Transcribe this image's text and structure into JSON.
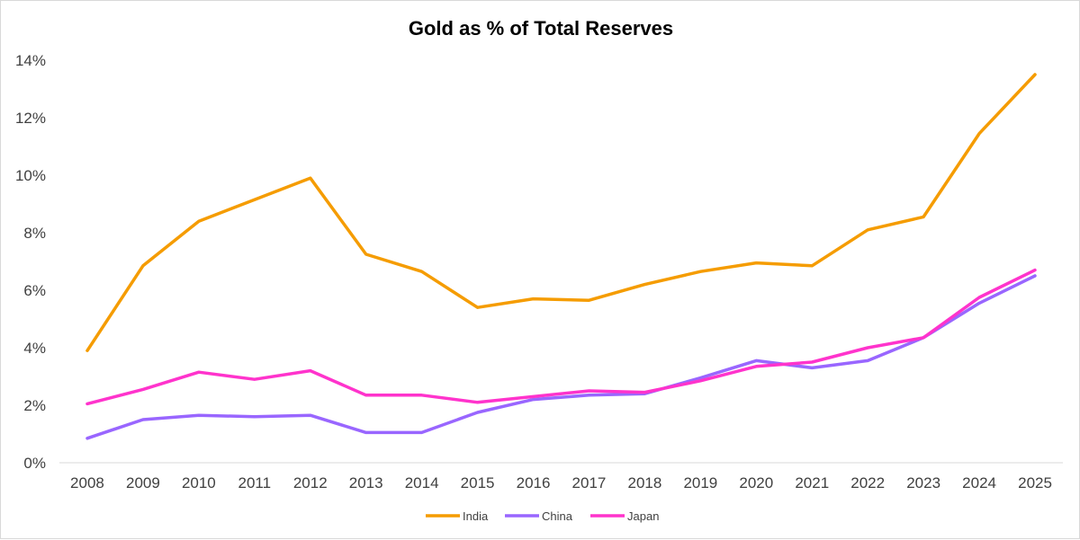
{
  "chart_data": {
    "type": "line",
    "title": "Gold as % of Total Reserves",
    "xlabel": "",
    "ylabel": "",
    "categories": [
      "2008",
      "2009",
      "2010",
      "2011",
      "2012",
      "2013",
      "2014",
      "2015",
      "2016",
      "2017",
      "2018",
      "2019",
      "2020",
      "2021",
      "2022",
      "2023",
      "2024",
      "2025"
    ],
    "ylim": [
      0,
      14
    ],
    "yticks": [
      0,
      2,
      4,
      6,
      8,
      10,
      12,
      14
    ],
    "ytick_format": "%",
    "grid": false,
    "legend_position": "bottom",
    "series": [
      {
        "name": "India",
        "color": "#f59c00",
        "values": [
          3.9,
          6.85,
          8.4,
          9.15,
          9.9,
          7.25,
          6.65,
          5.4,
          5.7,
          5.65,
          6.2,
          6.65,
          6.95,
          6.85,
          8.1,
          8.55,
          11.45,
          13.5
        ]
      },
      {
        "name": "China",
        "color": "#9966ff",
        "values": [
          0.85,
          1.5,
          1.65,
          1.6,
          1.65,
          1.05,
          1.05,
          1.75,
          2.2,
          2.35,
          2.4,
          2.95,
          3.55,
          3.3,
          3.55,
          4.35,
          5.55,
          6.5
        ]
      },
      {
        "name": "Japan",
        "color": "#ff33cc",
        "values": [
          2.05,
          2.55,
          3.15,
          2.9,
          3.2,
          2.35,
          2.35,
          2.1,
          2.3,
          2.5,
          2.45,
          2.85,
          3.35,
          3.5,
          4.0,
          4.35,
          5.75,
          6.7
        ]
      }
    ]
  }
}
